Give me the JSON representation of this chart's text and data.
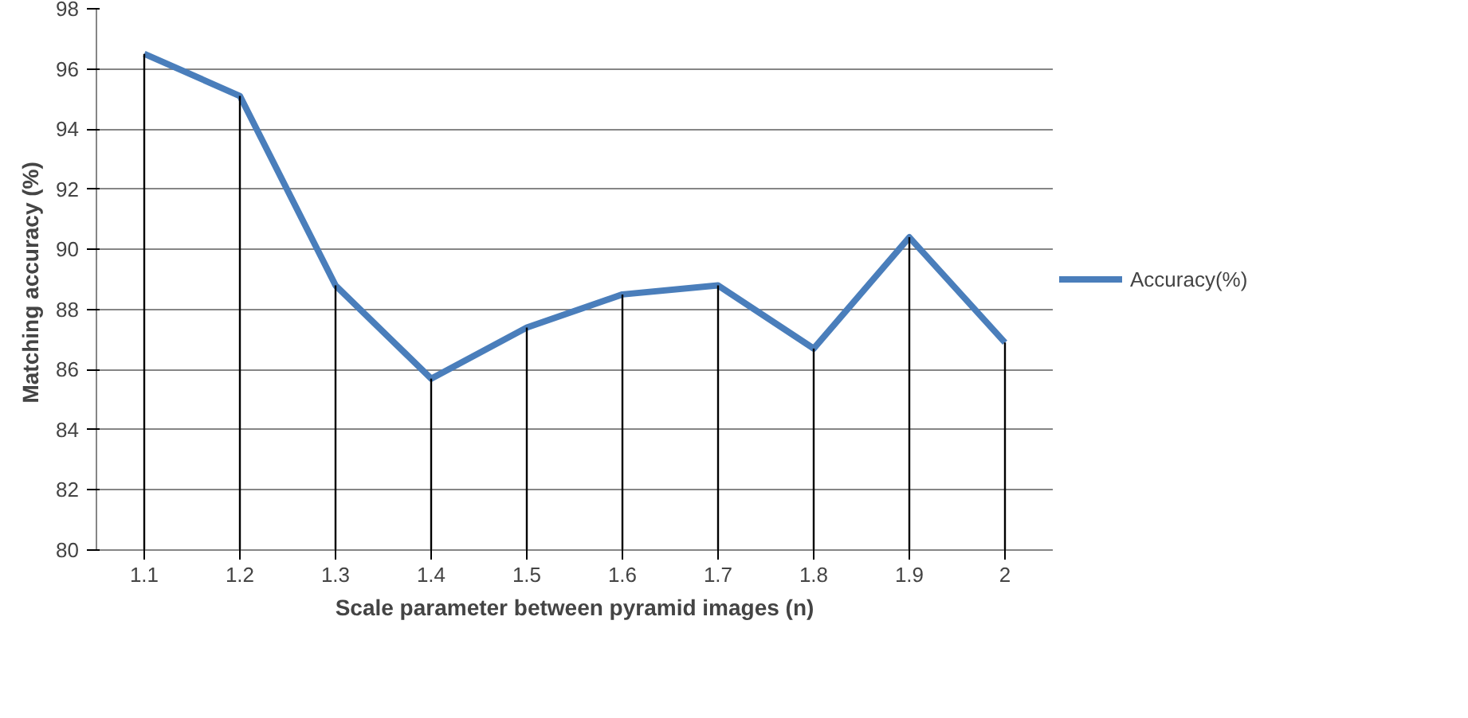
{
  "chart_data": {
    "type": "line",
    "xlabel": "Scale parameter between pyramid images (n)",
    "ylabel": "Matching accuracy  (%)",
    "categories": [
      "1.1",
      "1.2",
      "1.3",
      "1.4",
      "1.5",
      "1.6",
      "1.7",
      "1.8",
      "1.9",
      "2"
    ],
    "series": [
      {
        "name": "Accuracy(%)",
        "color": "#4a7ebb",
        "values": [
          96.5,
          95.1,
          88.8,
          85.7,
          87.4,
          88.5,
          88.8,
          86.7,
          90.4,
          86.9
        ]
      },
      {
        "type": "bar",
        "color": "#000000",
        "values": [
          96.5,
          95.1,
          88.8,
          85.7,
          87.4,
          88.5,
          88.8,
          86.7,
          90.4,
          86.9
        ]
      }
    ],
    "ylim": [
      80,
      98
    ],
    "yticks": [
      80,
      82,
      84,
      86,
      88,
      90,
      92,
      94,
      96,
      98
    ],
    "grid": "y",
    "legend": "right",
    "marker": "none",
    "line_style": "solid"
  }
}
